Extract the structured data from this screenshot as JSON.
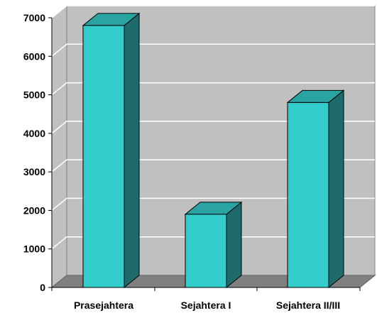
{
  "chart_data": {
    "type": "bar",
    "style": "3d-column",
    "categories": [
      "Prasejahtera",
      "Sejahtera I",
      "Sejahtera II/III"
    ],
    "values": [
      6800,
      1900,
      4800
    ],
    "ylim": [
      0,
      7000
    ],
    "yticks": [
      0,
      1000,
      2000,
      3000,
      4000,
      5000,
      6000,
      7000
    ],
    "grid": true,
    "legend": "none",
    "colors": {
      "bar_front": "#33CCCC",
      "bar_top": "#2AA3A3",
      "bar_side": "#1F6B6B",
      "wall": "#C0C0C0",
      "floor": "#808080",
      "gridline": "#FFFFFF"
    }
  }
}
